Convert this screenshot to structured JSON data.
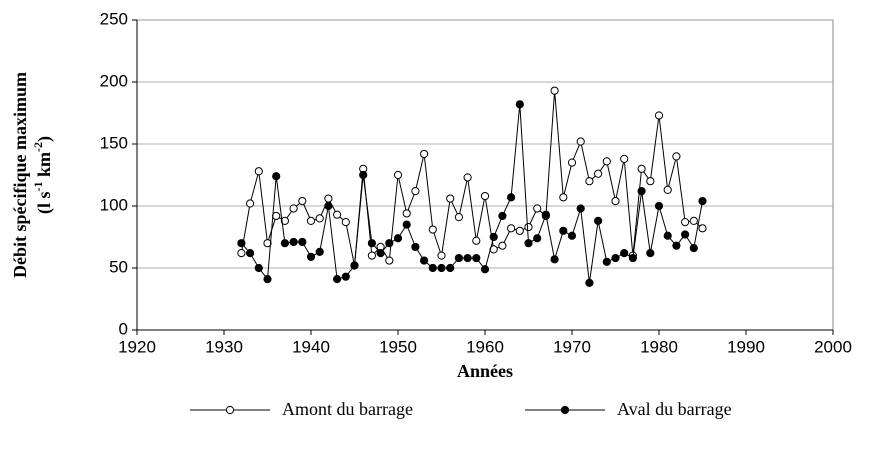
{
  "chart_data": {
    "type": "line",
    "xlabel": "Années",
    "ylabel": "Débit spécifique maximum",
    "ylabel_units": [
      "(l s",
      "-1",
      " km",
      "-2",
      ")"
    ],
    "x": [
      1932,
      1933,
      1934,
      1935,
      1936,
      1937,
      1938,
      1939,
      1940,
      1941,
      1942,
      1943,
      1944,
      1945,
      1946,
      1947,
      1948,
      1949,
      1950,
      1951,
      1952,
      1953,
      1954,
      1955,
      1956,
      1957,
      1958,
      1959,
      1960,
      1961,
      1962,
      1963,
      1964,
      1965,
      1966,
      1967,
      1968,
      1969,
      1970,
      1971,
      1972,
      1973,
      1974,
      1975,
      1976,
      1977,
      1978,
      1979,
      1980,
      1981,
      1982,
      1983,
      1984,
      1985
    ],
    "series": [
      {
        "name": "Amont du barrage",
        "color": "#000000",
        "marker": "open",
        "values": [
          62,
          102,
          128,
          70,
          92,
          88,
          98,
          104,
          88,
          90,
          106,
          93,
          87,
          52,
          130,
          60,
          67,
          56,
          125,
          94,
          112,
          142,
          81,
          60,
          106,
          91,
          123,
          72,
          108,
          65,
          68,
          82,
          80,
          83,
          98,
          92,
          193,
          107,
          135,
          152,
          120,
          126,
          136,
          104,
          138,
          60,
          130,
          120,
          173,
          113,
          140,
          87,
          88,
          82
        ]
      },
      {
        "name": "Aval du barrage",
        "color": "#000000",
        "marker": "filled",
        "values": [
          70,
          62,
          50,
          41,
          124,
          70,
          71,
          71,
          59,
          63,
          100,
          41,
          43,
          52,
          125,
          70,
          62,
          70,
          74,
          85,
          67,
          56,
          50,
          50,
          50,
          58,
          58,
          58,
          49,
          75,
          92,
          107,
          182,
          70,
          74,
          93,
          57,
          80,
          76,
          98,
          38,
          88,
          55,
          58,
          62,
          58,
          112,
          62,
          100,
          76,
          68,
          77,
          66,
          104
        ]
      }
    ],
    "xlim": [
      1920,
      2000
    ],
    "xticks": [
      1920,
      1930,
      1940,
      1950,
      1960,
      1970,
      1980,
      1990,
      2000
    ],
    "ylim": [
      0,
      250
    ],
    "yticks": [
      0,
      50,
      100,
      150,
      200,
      250
    ],
    "grid": true,
    "legend": "bottom"
  }
}
